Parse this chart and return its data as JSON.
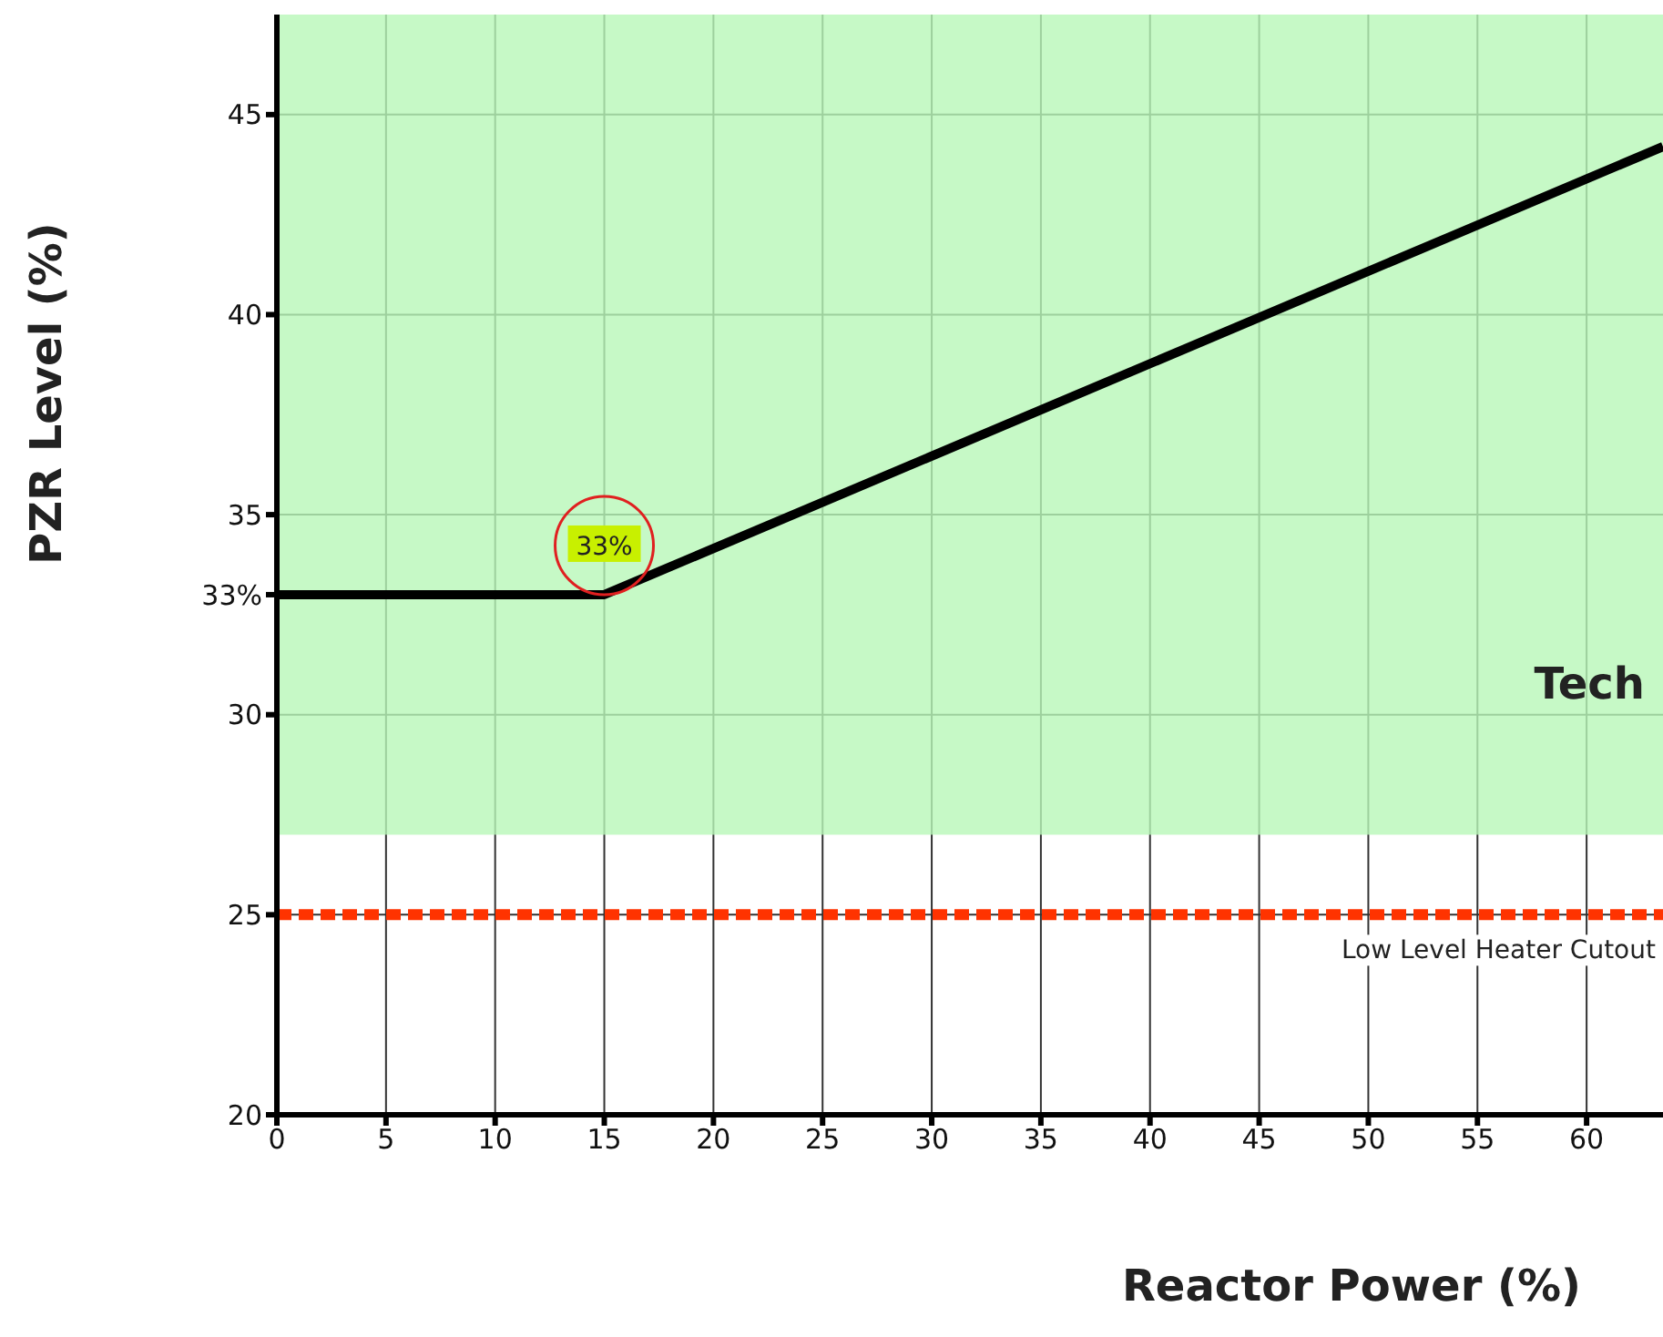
{
  "chart_data": {
    "type": "line",
    "xlabel": "Reactor Power (%)",
    "ylabel": "PZR Level (%)",
    "xlim": [
      0,
      63.5
    ],
    "ylim": [
      20,
      47.5
    ],
    "xticks": [
      0,
      5,
      10,
      15,
      20,
      25,
      30,
      35,
      40,
      45,
      50,
      55,
      60
    ],
    "yticks": [
      20,
      25,
      30,
      {
        "value": 33,
        "label": "33%"
      },
      35,
      40,
      45
    ],
    "grid": true,
    "marker": "none",
    "line_style": "solid",
    "series": [
      {
        "x": [
          0,
          15,
          63.5
        ],
        "values": [
          33,
          33,
          44.2
        ],
        "color": "#000000"
      }
    ],
    "bands": [
      {
        "axis": "y",
        "from": 27,
        "to": 47.5,
        "label": "Tech",
        "color": "#b8f7b8"
      }
    ],
    "ref_lines": [
      {
        "axis": "y",
        "value": 25,
        "label": "Low Level Heater Cutout",
        "color": "#ff3300",
        "line_style": "dashed"
      }
    ],
    "annotations": [
      {
        "text": "33%",
        "x": 15,
        "y": 33
      }
    ]
  }
}
